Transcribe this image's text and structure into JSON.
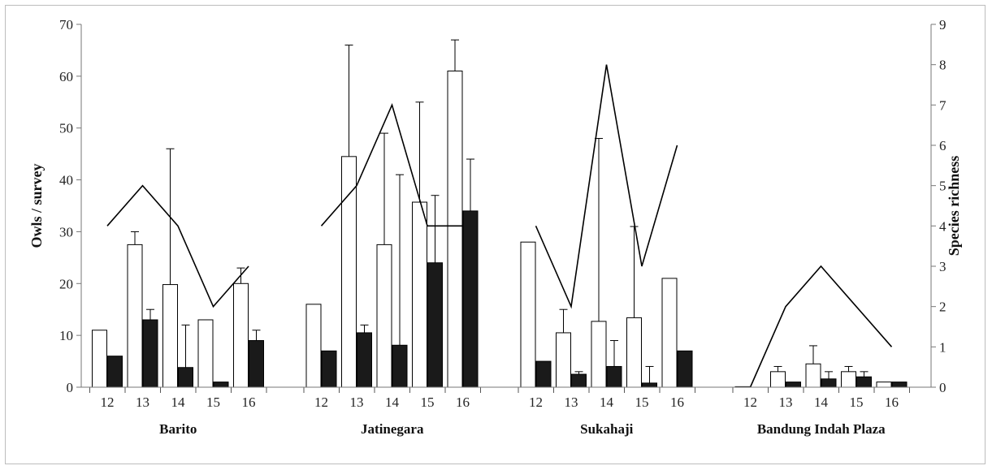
{
  "chart_data": {
    "type": "bar",
    "ylabel": "Owls / survey",
    "y2label": "Species richness",
    "ylim": [
      0,
      70
    ],
    "y2lim": [
      0,
      9
    ],
    "yticks": [
      0,
      10,
      20,
      30,
      40,
      50,
      60,
      70
    ],
    "y2ticks": [
      0,
      1,
      2,
      3,
      4,
      5,
      6,
      7,
      8,
      9
    ],
    "grid": false,
    "legend": "none",
    "colors": {
      "open_bar": "#ffffff",
      "filled_bar": "#1a1a1a",
      "line": "#000000"
    },
    "groups": [
      {
        "label": "Barito",
        "categories": [
          "12",
          "13",
          "14",
          "15",
          "16"
        ],
        "open": [
          11,
          27.5,
          19.8,
          13,
          20
        ],
        "open_err": [
          0,
          30,
          46,
          0,
          23
        ],
        "filled": [
          6,
          13,
          3.8,
          1,
          9
        ],
        "filled_err": [
          0,
          15,
          12,
          0,
          11
        ],
        "richness": [
          4,
          5,
          4,
          2,
          3
        ]
      },
      {
        "label": "Jatinegara",
        "categories": [
          "12",
          "13",
          "14",
          "15",
          "16"
        ],
        "open": [
          16,
          44.5,
          27.5,
          35.7,
          61
        ],
        "open_err": [
          0,
          66,
          49,
          55,
          67
        ],
        "filled": [
          7,
          10.5,
          8.1,
          24,
          34
        ],
        "filled_err": [
          0,
          12,
          41,
          37,
          44
        ],
        "richness": [
          4,
          5,
          7,
          4,
          4
        ]
      },
      {
        "label": "Sukahaji",
        "categories": [
          "12",
          "13",
          "14",
          "15",
          "16"
        ],
        "open": [
          28,
          10.5,
          12.7,
          13.4,
          21
        ],
        "open_err": [
          0,
          15,
          48,
          31,
          0
        ],
        "filled": [
          5,
          2.5,
          4,
          0.8,
          7
        ],
        "filled_err": [
          0,
          3,
          9,
          4,
          0
        ],
        "richness": [
          4,
          2,
          8,
          3,
          6
        ]
      },
      {
        "label": "Bandung Indah Plaza",
        "categories": [
          "12",
          "13",
          "14",
          "15",
          "16"
        ],
        "open": [
          0.1,
          3,
          4.5,
          3,
          1
        ],
        "open_err": [
          0,
          4,
          8,
          4,
          0
        ],
        "filled": [
          0,
          1,
          1.6,
          2,
          1
        ],
        "filled_err": [
          0,
          0,
          3,
          3,
          0
        ],
        "richness": [
          0,
          2,
          3,
          2,
          1
        ]
      }
    ]
  }
}
